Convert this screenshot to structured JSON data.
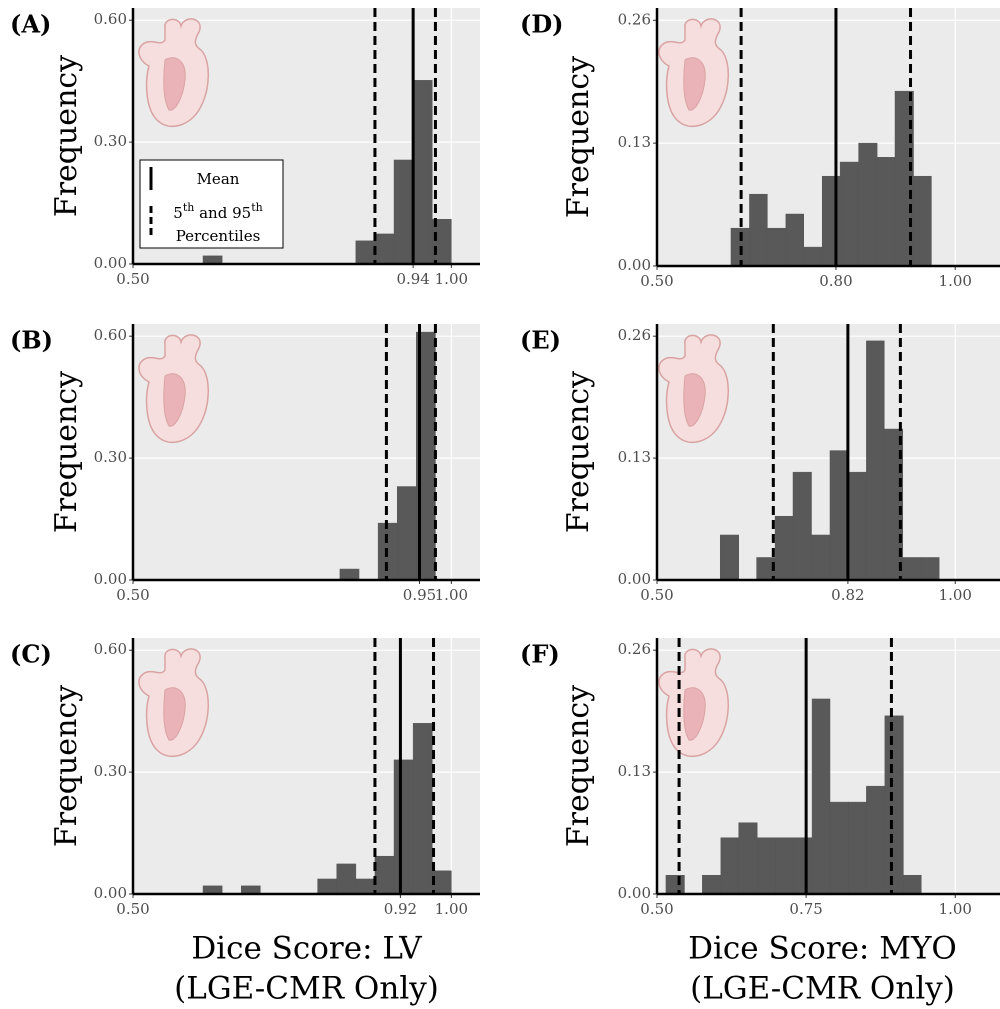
{
  "chart_data": [
    {
      "type": "histogram",
      "label": "(A)",
      "ylabel": "Frequency",
      "color": "#595959",
      "bins": [
        0.61,
        0.64,
        0.67,
        0.7,
        0.73,
        0.76,
        0.79,
        0.82,
        0.85,
        0.88,
        0.91,
        0.94,
        0.97,
        1.0
      ],
      "values": [
        0.02,
        0,
        0,
        0,
        0,
        0,
        0,
        0,
        0.057,
        0.074,
        0.256,
        0.452,
        0.11
      ],
      "mean": 0.94,
      "percentiles": [
        0.88,
        0.975
      ],
      "xlim": [
        0.5,
        1.045
      ],
      "ylim": [
        0,
        0.63
      ],
      "xticks": [
        {
          "value": 0.5,
          "label": "0.50"
        },
        0.94,
        {
          "value": 1.0,
          "label": "1.00"
        }
      ],
      "yticks": [
        {
          "value": 0,
          "label": "0.00"
        },
        {
          "value": 0.3,
          "label": "0.30"
        },
        {
          "value": 0.6,
          "label": "0.60"
        }
      ],
      "legend": {
        "mean": "Mean",
        "percentile_parts": [
          "5",
          "th",
          " and 95",
          "th"
        ],
        "percentile_line2": "Percentiles"
      }
    },
    {
      "type": "histogram",
      "label": "(B)",
      "ylabel": "Frequency",
      "color": "#595959",
      "bins": [
        0.825,
        0.855,
        0.885,
        0.915,
        0.945,
        0.975
      ],
      "values": [
        0.027,
        0,
        0.14,
        0.23,
        0.61
      ],
      "mean": 0.95,
      "percentiles": [
        0.898,
        0.975
      ],
      "xlim": [
        0.5,
        1.045
      ],
      "ylim": [
        0,
        0.63
      ],
      "xticks": [
        {
          "value": 0.5,
          "label": "0.50"
        },
        0.95,
        {
          "value": 1.0,
          "label": "1.00"
        }
      ],
      "yticks": [
        {
          "value": 0,
          "label": "0.00"
        },
        {
          "value": 0.3,
          "label": "0.30"
        },
        {
          "value": 0.6,
          "label": "0.60"
        }
      ]
    },
    {
      "type": "histogram",
      "label": "(C)",
      "ylabel": "Frequency",
      "color": "#595959",
      "bins": [
        0.61,
        0.64,
        0.67,
        0.7,
        0.73,
        0.76,
        0.79,
        0.82,
        0.85,
        0.88,
        0.91,
        0.94,
        0.97,
        1.0
      ],
      "values": [
        0.02,
        0,
        0.02,
        0,
        0,
        0,
        0.037,
        0.074,
        0.037,
        0.093,
        0.33,
        0.42,
        0.057
      ],
      "mean": 0.92,
      "percentiles": [
        0.88,
        0.972
      ],
      "xlim": [
        0.5,
        1.045
      ],
      "ylim": [
        0,
        0.63
      ],
      "xticks": [
        {
          "value": 0.5,
          "label": "0.50"
        },
        0.92,
        {
          "value": 1.0,
          "label": "1.00"
        }
      ],
      "yticks": [
        {
          "value": 0,
          "label": "0.00"
        },
        {
          "value": 0.3,
          "label": "0.30"
        },
        {
          "value": 0.6,
          "label": "0.60"
        }
      ],
      "xlabel": [
        "Dice Score: LV",
        "(LGE-CMR Only)"
      ]
    },
    {
      "type": "histogram",
      "label": "(D)",
      "ylabel": "Frequency",
      "color": "#595959",
      "bins": [
        0.624,
        0.655,
        0.685,
        0.716,
        0.746,
        0.777,
        0.807,
        0.838,
        0.869,
        0.899,
        0.93,
        0.96
      ],
      "values": [
        0.04,
        0.076,
        0.04,
        0.055,
        0.02,
        0.095,
        0.11,
        0.13,
        0.115,
        0.185,
        0.095
      ],
      "mean": 0.8,
      "percentiles": [
        0.641,
        0.925
      ],
      "xlim": [
        0.5,
        1.075
      ],
      "ylim": [
        0,
        0.273
      ],
      "xticks": [
        {
          "value": 0.5,
          "label": "0.50"
        },
        {
          "value": 0.8,
          "label": "0.80"
        },
        {
          "value": 1.0,
          "label": "1.00"
        }
      ],
      "yticks": [
        {
          "value": 0,
          "label": "0.00"
        },
        0.13,
        0.26
      ]
    },
    {
      "type": "histogram",
      "label": "(E)",
      "ylabel": "Frequency",
      "color": "#595959",
      "bins": [
        0.606,
        0.637,
        0.667,
        0.698,
        0.728,
        0.759,
        0.79,
        0.82,
        0.851,
        0.881,
        0.912,
        0.943,
        0.973
      ],
      "values": [
        0.048,
        0,
        0.024,
        0.068,
        0.115,
        0.048,
        0.138,
        0.115,
        0.255,
        0.161,
        0.024,
        0.024
      ],
      "mean": 0.82,
      "percentiles": [
        0.695,
        0.908
      ],
      "xlim": [
        0.5,
        1.075
      ],
      "ylim": [
        0,
        0.273
      ],
      "xticks": [
        {
          "value": 0.5,
          "label": "0.50"
        },
        0.82,
        {
          "value": 1.0,
          "label": "1.00"
        }
      ],
      "yticks": [
        {
          "value": 0,
          "label": "0.00"
        },
        0.13,
        0.26
      ]
    },
    {
      "type": "histogram",
      "label": "(F)",
      "ylabel": "Frequency",
      "color": "#595959",
      "bins": [
        0.515,
        0.546,
        0.576,
        0.607,
        0.637,
        0.668,
        0.699,
        0.729,
        0.76,
        0.79,
        0.821,
        0.851,
        0.882,
        0.913,
        0.943
      ],
      "values": [
        0.02,
        0,
        0.02,
        0.06,
        0.076,
        0.06,
        0.06,
        0.06,
        0.208,
        0.098,
        0.098,
        0.115,
        0.19,
        0.02
      ],
      "mean": 0.75,
      "percentiles": [
        0.537,
        0.893
      ],
      "xlim": [
        0.5,
        1.075
      ],
      "ylim": [
        0,
        0.273
      ],
      "xticks": [
        {
          "value": 0.5,
          "label": "0.50"
        },
        0.75,
        {
          "value": 1.0,
          "label": "1.00"
        }
      ],
      "yticks": [
        {
          "value": 0,
          "label": "0.00"
        },
        0.13,
        0.26
      ],
      "xlabel": [
        "Dice Score: MYO",
        "(LGE-CMR Only)"
      ]
    }
  ]
}
